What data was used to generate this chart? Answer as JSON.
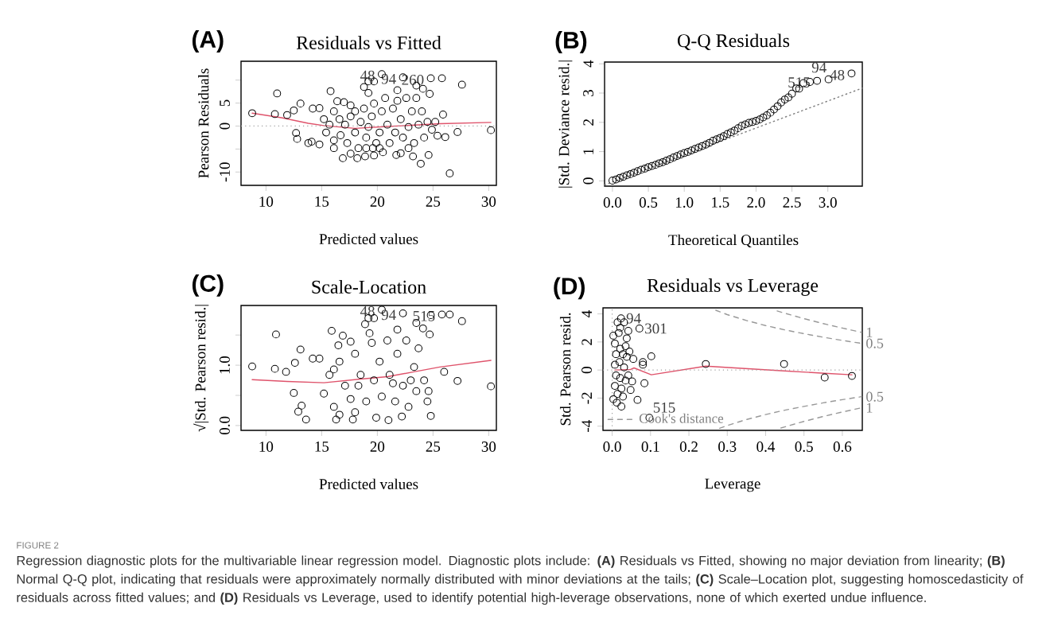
{
  "chart_data": [
    {
      "type": "scatter",
      "title": "Residuals vs Fitted",
      "xlabel": "Predicted values",
      "ylabel": "Pearson Residuals",
      "xlim": [
        7.76,
        30.69
      ],
      "ylim": [
        -12.9,
        14.1
      ],
      "xticks": [
        10,
        15,
        20,
        25,
        30
      ],
      "yticks": [
        -10,
        {
          "value": -5,
          "label": null
        },
        0,
        5,
        {
          "value": 10,
          "label": null
        }
      ],
      "series": [
        {
          "marker": "circle",
          "color": "#000000",
          "x": [
            8.76,
            10.8,
            11.0,
            11.9,
            12.5,
            13.1,
            12.7,
            12.8,
            13.8,
            14.1,
            14.8,
            14.2,
            14.8,
            15.8,
            16.4,
            17.0,
            16.9,
            17.6,
            17.6,
            18.2,
            18.9,
            18.8,
            19.2,
            19.7,
            19.2,
            19.7,
            20.4,
            22.3,
            24.8,
            25.8,
            27.6,
            25.9,
            27.2,
            30.2,
            26.5,
            23.9,
            24.6,
            23.2,
            21.8,
            23.5,
            24.1,
            24.7,
            25.4,
            26.1,
            21.7,
            22.1,
            20.5,
            19.6,
            15.2,
            15.4,
            15.7,
            16.1,
            16.1,
            16.6,
            16.7,
            17.1,
            17.3,
            17.6,
            18.0,
            18.0,
            18.3,
            18.5,
            18.8,
            19.0,
            19.2,
            19.5,
            19.7,
            19.9,
            20.2,
            20.4,
            20.7,
            20.9,
            21.1,
            21.4,
            21.6,
            21.8,
            22.1,
            22.3,
            22.6,
            22.8,
            23.1,
            23.3,
            23.5,
            23.7,
            24.0,
            24.2,
            24.5,
            24.9,
            25.2,
            16.1,
            19.0,
            20.2,
            22.8
          ],
          "values": [
            2.8,
            2.6,
            7.1,
            2.4,
            3.4,
            4.9,
            -1.5,
            -2.8,
            -3.7,
            -3.4,
            -4.0,
            3.8,
            3.9,
            7.6,
            5.4,
            5.2,
            -7.0,
            4.5,
            -6.0,
            -7.0,
            -6.6,
            8.5,
            9.7,
            9.7,
            7.2,
            -6.4,
            11.3,
            10.6,
            10.4,
            10.4,
            9.0,
            2.5,
            -1.3,
            -0.9,
            -10.3,
            -8.2,
            -6.3,
            -6.6,
            7.8,
            8.8,
            8.1,
            7.0,
            -2.1,
            -2.4,
            -6.3,
            -5.9,
            -5.7,
            -4.8,
            1.5,
            -1.4,
            0.3,
            3.2,
            -3.1,
            1.5,
            -2.0,
            0.3,
            -3.7,
            2.1,
            3.2,
            -1.4,
            -4.8,
            0.9,
            3.8,
            -2.5,
            -0.2,
            2.1,
            4.9,
            -3.7,
            -1.4,
            3.2,
            6.1,
            0.3,
            -3.7,
            3.8,
            -1.4,
            5.5,
            1.5,
            -2.5,
            6.1,
            -0.2,
            3.2,
            -3.7,
            6.1,
            0.3,
            3.2,
            -2.5,
            0.9,
            -0.8,
            0.9,
            -4.8,
            -4.8,
            -4.8,
            -4.8
          ]
        },
        {
          "type": "line",
          "color": "#df536b",
          "x": [
            8.76,
            11.4,
            13.8,
            15.2,
            18.0,
            20.9,
            23.3,
            25.6,
            30.2
          ],
          "values": [
            2.8,
            1.8,
            0.6,
            0.1,
            -0.5,
            -0.1,
            0.2,
            0.5,
            0.8
          ]
        }
      ],
      "ref_lines": [
        {
          "axis": "y",
          "value": 0,
          "line_style": "dotted",
          "color": "#a0a0a0"
        }
      ],
      "annotations": [
        "(A)",
        {
          "text": "48",
          "x": 20.4,
          "y": 11.3
        },
        {
          "text": "94",
          "x": 22.3,
          "y": 10.6
        },
        {
          "text": "260",
          "x": 24.8,
          "y": 10.4
        }
      ]
    },
    {
      "type": "scatter",
      "title": "Q-Q Residuals",
      "xlabel": "Theoretical Quantiles",
      "ylabel": "|Std. Deviance resid.|",
      "xlim": [
        -0.11,
        3.48
      ],
      "ylim": [
        -0.18,
        4.06
      ],
      "xticks": [
        {
          "value": 0,
          "label": "0.0"
        },
        0.5,
        {
          "value": 1,
          "label": "1.0"
        },
        1.5,
        {
          "value": 2,
          "label": "2.0"
        },
        2.5,
        {
          "value": 3,
          "label": "3.0"
        }
      ],
      "yticks": [
        0,
        1,
        2,
        3,
        4
      ],
      "series": [
        {
          "marker": "circle",
          "color": "#000000",
          "x": [
            0,
            0.05,
            0.1,
            0.15,
            0.2,
            0.25,
            0.3,
            0.35,
            0.4,
            0.45,
            0.5,
            0.55,
            0.6,
            0.65,
            0.7,
            0.75,
            0.8,
            0.85,
            0.9,
            0.95,
            1.0,
            1.05,
            1.1,
            1.15,
            1.2,
            1.25,
            1.3,
            1.35,
            1.4,
            1.45,
            1.5,
            1.55,
            1.6,
            1.65,
            1.7,
            1.75,
            1.8,
            1.85,
            1.9,
            1.95,
            2.0,
            2.05,
            2.1,
            2.15,
            2.2,
            2.25,
            2.3,
            2.35,
            2.4,
            2.45,
            2.5,
            2.56,
            2.6,
            2.66,
            2.75,
            2.85,
            3.01,
            3.33
          ],
          "values": [
            0.01,
            0.05,
            0.1,
            0.14,
            0.19,
            0.23,
            0.28,
            0.33,
            0.38,
            0.42,
            0.47,
            0.51,
            0.55,
            0.6,
            0.64,
            0.69,
            0.74,
            0.8,
            0.85,
            0.9,
            0.95,
            0.99,
            1.04,
            1.09,
            1.14,
            1.19,
            1.24,
            1.3,
            1.37,
            1.42,
            1.47,
            1.53,
            1.6,
            1.66,
            1.72,
            1.8,
            1.88,
            1.93,
            1.98,
            2.01,
            2.05,
            2.1,
            2.17,
            2.24,
            2.33,
            2.44,
            2.55,
            2.68,
            2.78,
            2.85,
            2.98,
            3.16,
            3.15,
            3.34,
            3.38,
            3.42,
            3.47,
            3.67
          ]
        },
        {
          "type": "line",
          "line_style": "dotted",
          "color": "#808080",
          "x": [
            -0.11,
            3.48
          ],
          "values": [
            -0.14,
            3.17
          ]
        }
      ],
      "annotations": [
        "(B)",
        {
          "text": "515",
          "x": 2.85,
          "y": 3.42
        },
        {
          "text": "94",
          "x": 3.01,
          "y": 3.47
        },
        {
          "text": "48",
          "x": 3.33,
          "y": 3.67
        }
      ]
    },
    {
      "type": "scatter",
      "title": "Scale-Location",
      "xlabel": "Predicted values",
      "ylabel": "√|Std. Pearson resid.|",
      "xlim": [
        7.76,
        30.69
      ],
      "ylim": [
        -0.08,
        1.99
      ],
      "xticks": [
        10,
        15,
        20,
        25,
        30
      ],
      "yticks": [
        {
          "value": 0,
          "label": "0.0"
        },
        {
          "value": 0.5,
          "label": null
        },
        {
          "value": 1,
          "label": "1.0"
        },
        {
          "value": 1.5,
          "label": null
        }
      ],
      "series": [
        {
          "marker": "circle",
          "color": "#000000",
          "x": [
            8.76,
            10.8,
            10.9,
            11.8,
            13.1,
            12.6,
            12.5,
            12.9,
            13.6,
            13.2,
            14.2,
            14.8,
            15.9,
            16.9,
            16.5,
            17.6,
            17.8,
            16.3,
            18.9,
            19.2,
            19.7,
            19.3,
            20.4,
            22.3,
            24.8,
            25.8,
            26.5,
            27.6,
            30.2,
            27.2,
            26.0,
            24.8,
            24.6,
            23.5,
            24.1,
            24.7,
            21.8,
            21.0,
            22.2,
            16.6,
            18.0,
            19.9,
            15.2,
            15.7,
            16.1,
            16.6,
            17.1,
            17.6,
            18.0,
            18.5,
            19.0,
            19.5,
            19.7,
            20.2,
            20.4,
            20.9,
            21.1,
            21.6,
            21.8,
            22.3,
            22.6,
            22.8,
            23.3,
            23.5,
            23.7,
            24.2,
            24.5,
            16.1,
            18.3,
            21.4,
            23.0
          ],
          "values": [
            0.98,
            0.94,
            1.51,
            0.89,
            1.26,
            1.04,
            0.54,
            0.23,
            0.1,
            0.33,
            1.11,
            1.11,
            1.57,
            1.49,
            1.33,
            1.39,
            0.1,
            0.1,
            1.68,
            1.78,
            1.78,
            1.53,
            1.92,
            1.86,
            1.83,
            1.84,
            1.84,
            1.73,
            0.65,
            0.74,
            0.89,
            0.16,
            0.57,
            1.7,
            1.61,
            1.51,
            1.59,
            0.09,
            0.15,
            0.18,
            0.22,
            0.13,
            0.53,
            0.84,
            0.31,
            1.06,
            0.66,
            0.44,
            1.19,
            0.84,
            0.4,
            1.37,
            0.75,
            1.06,
            0.48,
            1.41,
            0.84,
            0.4,
            1.19,
            0.66,
            1.41,
            0.31,
            0.97,
            0.57,
            1.28,
            0.75,
            0.4,
            0.93,
            0.66,
            0.7,
            0.75
          ]
        },
        {
          "type": "line",
          "color": "#df536b",
          "x": [
            8.76,
            11.9,
            15.2,
            18.5,
            20.9,
            23.3,
            25.6,
            30.2
          ],
          "values": [
            0.76,
            0.73,
            0.71,
            0.77,
            0.81,
            0.89,
            0.97,
            1.08
          ]
        }
      ],
      "annotations": [
        "(C)",
        {
          "text": "48",
          "x": 20.4,
          "y": 1.92
        },
        {
          "text": "94",
          "x": 22.3,
          "y": 1.86
        },
        {
          "text": "515",
          "x": 25.8,
          "y": 1.84
        }
      ]
    },
    {
      "type": "scatter",
      "title": "Residuals vs Leverage",
      "xlabel": "Leverage",
      "ylabel": "Std. Pearson resid.",
      "xlim": [
        -0.024,
        0.652
      ],
      "ylim": [
        -4.3,
        4.43
      ],
      "xticks": [
        {
          "value": 0,
          "label": "0.0"
        },
        0.1,
        0.2,
        0.3,
        0.4,
        0.5,
        0.6
      ],
      "yticks": [
        -4,
        -2,
        0,
        2,
        4
      ],
      "legend": "bottom left",
      "series": [
        {
          "marker": "circle",
          "color": "#000000",
          "x": [
            0.023,
            0.071,
            0.097,
            0.102,
            0.244,
            0.448,
            0.554,
            0.625,
            0.084,
            0.066,
            0.08,
            0.08,
            0.055,
            0.052,
            0.048,
            0.024,
            0.012,
            0.042,
            0.014,
            0.031,
            0.038,
            0.035,
            0.007,
            0.01,
            0.007,
            0.01,
            0.007,
            0.014,
            0.017,
            0.021,
            0.019,
            0.021,
            0.024,
            0.028,
            0.031,
            0.028,
            0.035,
            0.038,
            0.042,
            0.045,
            0.021,
            0.003,
            0.003
          ],
          "values": [
            3.68,
            2.96,
            -3.4,
            0.98,
            0.43,
            0.43,
            -0.53,
            -0.42,
            -0.94,
            -2.13,
            0.38,
            0.57,
            0.79,
            -0.81,
            -1.42,
            -2.6,
            -2.32,
            2.79,
            3.4,
            3.4,
            2.26,
            1.7,
            1.89,
            1.13,
            0.38,
            -0.38,
            -1.13,
            -1.7,
            2.64,
            1.51,
            0.57,
            -0.57,
            -1.32,
            1.13,
            0.19,
            -1.89,
            -0.75,
            0.94,
            -0.38,
            1.32,
            3.02,
            2.45,
            -2.08
          ]
        },
        {
          "type": "line",
          "color": "#df536b",
          "x": [
            0.007,
            0.048,
            0.057,
            0.102,
            0.244,
            0.448,
            0.554,
            0.625
          ],
          "values": [
            0,
            0.04,
            0.15,
            -0.34,
            0.28,
            -0.06,
            -0.23,
            -0.34
          ]
        },
        {
          "type": "line",
          "name": "Cook's distance",
          "line_style": "dashed",
          "color": "#999999",
          "x": [
            0.27,
            0.3,
            0.35,
            0.4,
            0.45,
            0.5,
            0.55,
            0.6,
            0.65
          ],
          "values": [
            4.26,
            3.95,
            3.53,
            3.17,
            2.86,
            2.59,
            2.34,
            2.11,
            1.9
          ]
        },
        {
          "type": "line",
          "line_style": "dashed",
          "color": "#999999",
          "x": [
            0.43,
            0.45,
            0.5,
            0.55,
            0.6,
            0.65
          ],
          "values": [
            4.21,
            4.05,
            3.66,
            3.31,
            2.99,
            2.69
          ]
        },
        {
          "type": "line",
          "line_style": "dashed",
          "color": "#999999",
          "x": [
            0.28,
            0.3,
            0.35,
            0.4,
            0.45,
            0.5,
            0.55,
            0.6,
            0.65
          ],
          "values": [
            -4.15,
            -3.95,
            -3.53,
            -3.17,
            -2.86,
            -2.59,
            -2.34,
            -2.11,
            -1.9
          ]
        },
        {
          "type": "line",
          "line_style": "dashed",
          "color": "#999999",
          "x": [
            0.44,
            0.45,
            0.5,
            0.55,
            0.6,
            0.65
          ],
          "values": [
            -4.13,
            -4.05,
            -3.66,
            -3.31,
            -2.99,
            -2.69
          ]
        }
      ],
      "ref_lines": [
        {
          "axis": "y",
          "value": 0,
          "line_style": "dotted",
          "color": "#a0a0a0"
        },
        {
          "axis": "x",
          "value": 0,
          "line_style": "dotted",
          "color": "#a0a0a0"
        }
      ],
      "annotations": [
        "(D)",
        {
          "text": "94",
          "x": 0.023,
          "y": 3.68
        },
        {
          "text": "301",
          "x": 0.071,
          "y": 2.96
        },
        {
          "text": "515",
          "x": 0.097,
          "y": -3.4
        },
        {
          "text": "1",
          "x": 0.652,
          "y": 2.69
        },
        {
          "text": "0.5",
          "x": 0.652,
          "y": 1.9
        },
        {
          "text": "0.5",
          "x": 0.652,
          "y": -1.9
        },
        {
          "text": "1",
          "x": 0.652,
          "y": -2.69
        },
        "FIGURE 2",
        "Regression diagnostic plots for the multivariable linear regression model. Diagnostic plots include: **(A)** Residuals vs Fitted, showing no major deviation from linearity; **(B)** Normal Q-Q plot, indicating that residuals were approximately normally distributed with minor deviations at the tails; **(C)** Scale–Location plot, suggesting homoscedasticity of residuals across fitted values; and **(D)** Residuals vs Leverage, used to identify potential high-leverage observations, none of which exerted undue influence."
      ]
    }
  ]
}
